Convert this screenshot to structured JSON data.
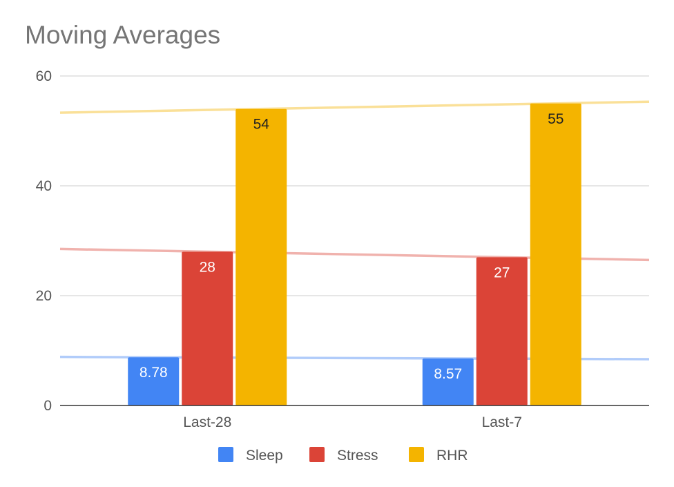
{
  "chart_data": {
    "type": "bar",
    "title": "Moving Averages",
    "categories": [
      "Last-28",
      "Last-7"
    ],
    "series": [
      {
        "name": "Sleep",
        "values": [
          8.78,
          8.57
        ],
        "color": "#4285f4",
        "label_color": "#ffffff",
        "trendline_color": "#a9c7fa"
      },
      {
        "name": "Stress",
        "values": [
          28,
          27
        ],
        "color": "#db4437",
        "label_color": "#ffffff",
        "trendline_color": "#eeaaa4"
      },
      {
        "name": "RHR",
        "values": [
          54,
          55
        ],
        "color": "#f4b400",
        "label_color": "#222222",
        "trendline_color": "#f9dd8d"
      }
    ],
    "trendlines": true,
    "ylim": [
      0,
      60
    ],
    "yticks": [
      0,
      20,
      40,
      60
    ],
    "grid": true,
    "legend_position": "bottom",
    "xlabel": "",
    "ylabel": ""
  }
}
